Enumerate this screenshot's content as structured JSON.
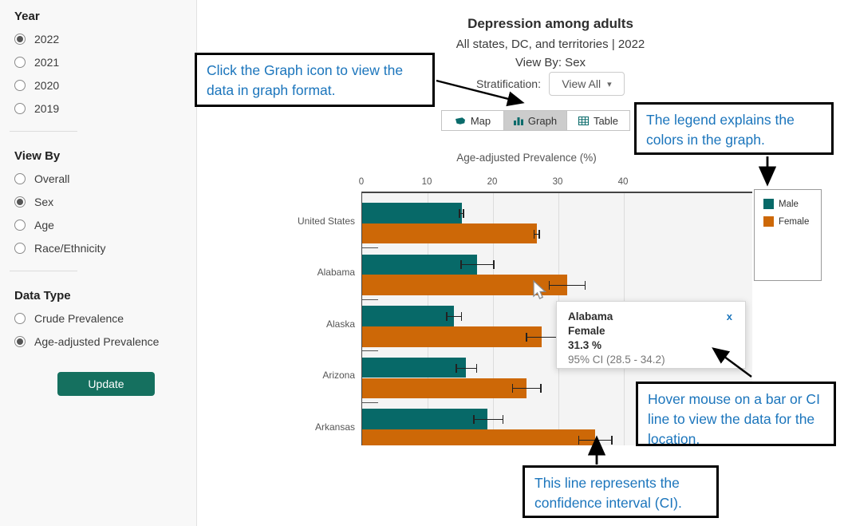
{
  "sidebar": {
    "year": {
      "heading": "Year",
      "options": [
        {
          "label": "2022",
          "selected": true
        },
        {
          "label": "2021",
          "selected": false
        },
        {
          "label": "2020",
          "selected": false
        },
        {
          "label": "2019",
          "selected": false
        }
      ]
    },
    "view_by": {
      "heading": "View By",
      "options": [
        {
          "label": "Overall",
          "selected": false
        },
        {
          "label": "Sex",
          "selected": true
        },
        {
          "label": "Age",
          "selected": false
        },
        {
          "label": "Race/Ethnicity",
          "selected": false
        }
      ]
    },
    "data_type": {
      "heading": "Data Type",
      "options": [
        {
          "label": "Crude Prevalence",
          "selected": false
        },
        {
          "label": "Age-adjusted Prevalence",
          "selected": true
        }
      ]
    },
    "update_label": "Update"
  },
  "header": {
    "title": "Depression among adults",
    "subtitle": "All states, DC, and territories | 2022",
    "view_by": "View By: Sex",
    "stratification_label": "Stratification:",
    "stratification_value": "View All"
  },
  "tabs": [
    {
      "label": "Map",
      "icon": "map-icon",
      "active": false
    },
    {
      "label": "Graph",
      "icon": "graph-icon",
      "active": true
    },
    {
      "label": "Table",
      "icon": "table-icon",
      "active": false
    }
  ],
  "chart_data": {
    "type": "bar",
    "orientation": "horizontal",
    "title": "Age-adjusted Prevalence (%)",
    "xlabel": "Age-adjusted Prevalence (%)",
    "x_ticks": [
      0,
      10,
      20,
      30,
      40
    ],
    "xlim": [
      0,
      59.7
    ],
    "grid": true,
    "legend_position": "right",
    "axis_position": "top",
    "categories": [
      "United States",
      "Alabama",
      "Alaska",
      "Arizona",
      "Arkansas"
    ],
    "series": [
      {
        "name": "Male",
        "color": "#076968",
        "values": [
          15.2,
          17.5,
          14.0,
          15.9,
          19.1
        ],
        "ci_low": [
          14.8,
          15.0,
          12.8,
          14.3,
          17.0
        ],
        "ci_high": [
          15.6,
          20.2,
          15.3,
          17.6,
          21.6
        ]
      },
      {
        "name": "Female",
        "color": "#cd6807",
        "values": [
          26.7,
          31.3,
          27.4,
          25.1,
          35.6
        ],
        "ci_low": [
          26.2,
          28.5,
          25.0,
          22.9,
          33.0
        ],
        "ci_high": [
          27.2,
          34.2,
          29.9,
          27.4,
          38.3
        ]
      }
    ],
    "note": "bars truncated at bottom edge of visible plot"
  },
  "legend": {
    "items": [
      {
        "label": "Male",
        "color": "#076968"
      },
      {
        "label": "Female",
        "color": "#cd6807"
      }
    ]
  },
  "tooltip": {
    "location": "Alabama",
    "group": "Female",
    "value": "31.3 %",
    "ci": "95% CI (28.5 - 34.2)",
    "close_label": "x"
  },
  "callouts": {
    "graph_tab": "Click the Graph icon to view the data in graph format.",
    "legend": "The legend explains the colors in the graph.",
    "hover": "Hover mouse on a bar or CI line to view the data for the location.",
    "ci": "This line represents the confidence interval (CI)."
  },
  "colors": {
    "male_bar": "#076968",
    "female_bar": "#cd6807",
    "update_button": "#15705f",
    "callout_text": "#1b75bc",
    "active_tab_bg": "#cccccc"
  }
}
